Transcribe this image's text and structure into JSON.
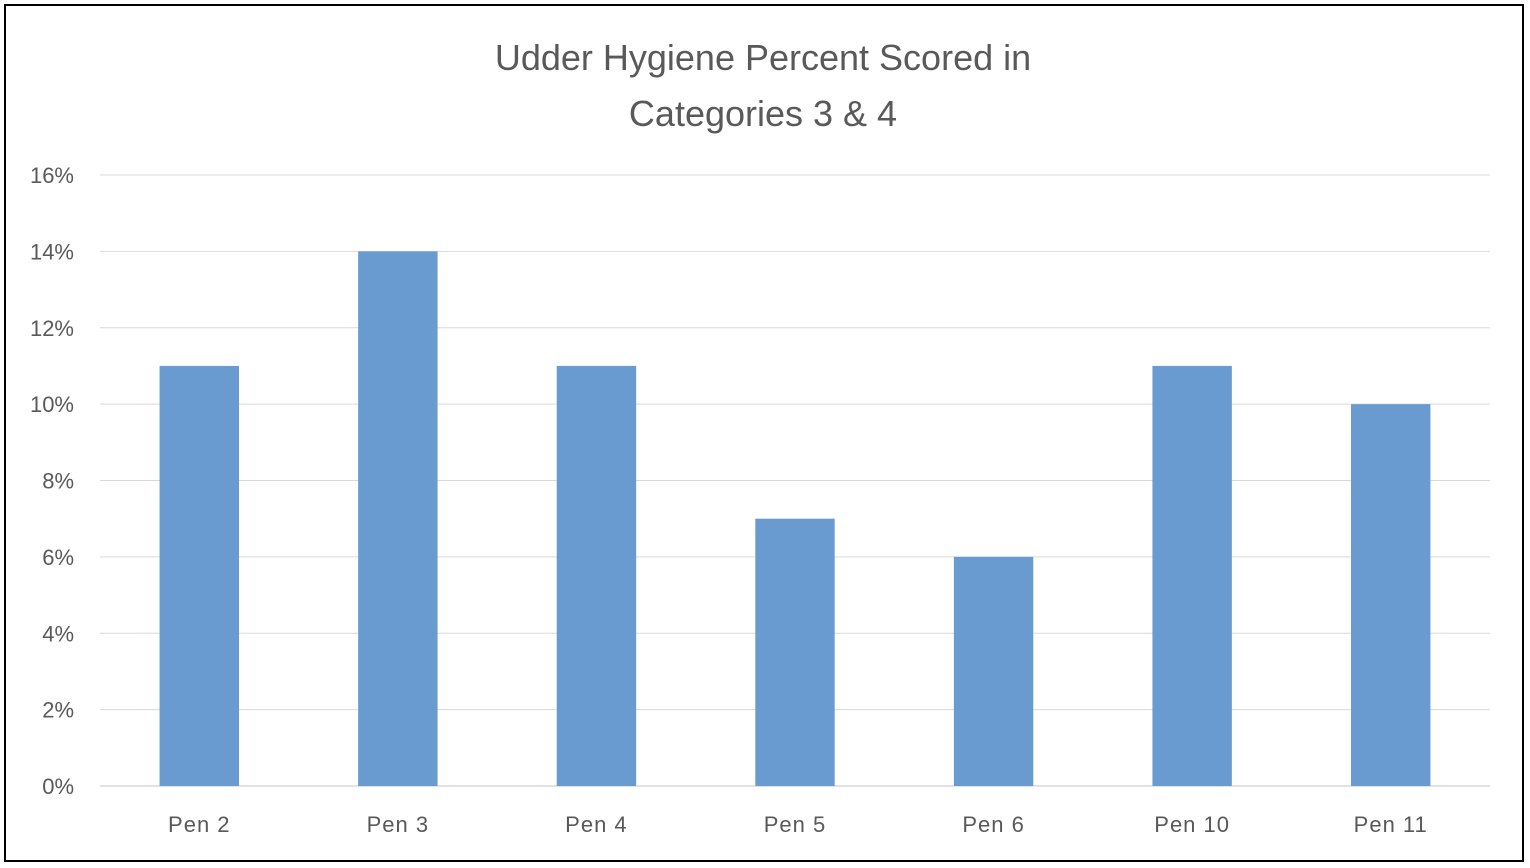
{
  "chart_data": {
    "type": "bar",
    "title": "Udder Hygiene Percent  Scored in Categories 3 & 4",
    "title_lines": [
      "Udder Hygiene Percent  Scored in",
      "Categories 3 & 4"
    ],
    "xlabel": "",
    "ylabel": "",
    "categories": [
      "Pen 2",
      "Pen 3",
      "Pen 4",
      "Pen 5",
      "Pen 6",
      "Pen 10",
      "Pen 11"
    ],
    "values": [
      11,
      14,
      11,
      7,
      6,
      11,
      10
    ],
    "ylim": [
      0,
      16
    ],
    "y_ticks": [
      0,
      2,
      4,
      6,
      8,
      10,
      12,
      14,
      16
    ],
    "y_tick_labels": [
      "0%",
      "2%",
      "4%",
      "6%",
      "8%",
      "10%",
      "12%",
      "14%",
      "16%"
    ],
    "grid": true,
    "legend": "none",
    "colors": {
      "bar": "#6a9bd0",
      "grid": "#d9d9d9",
      "axis_text": "#595959"
    }
  }
}
